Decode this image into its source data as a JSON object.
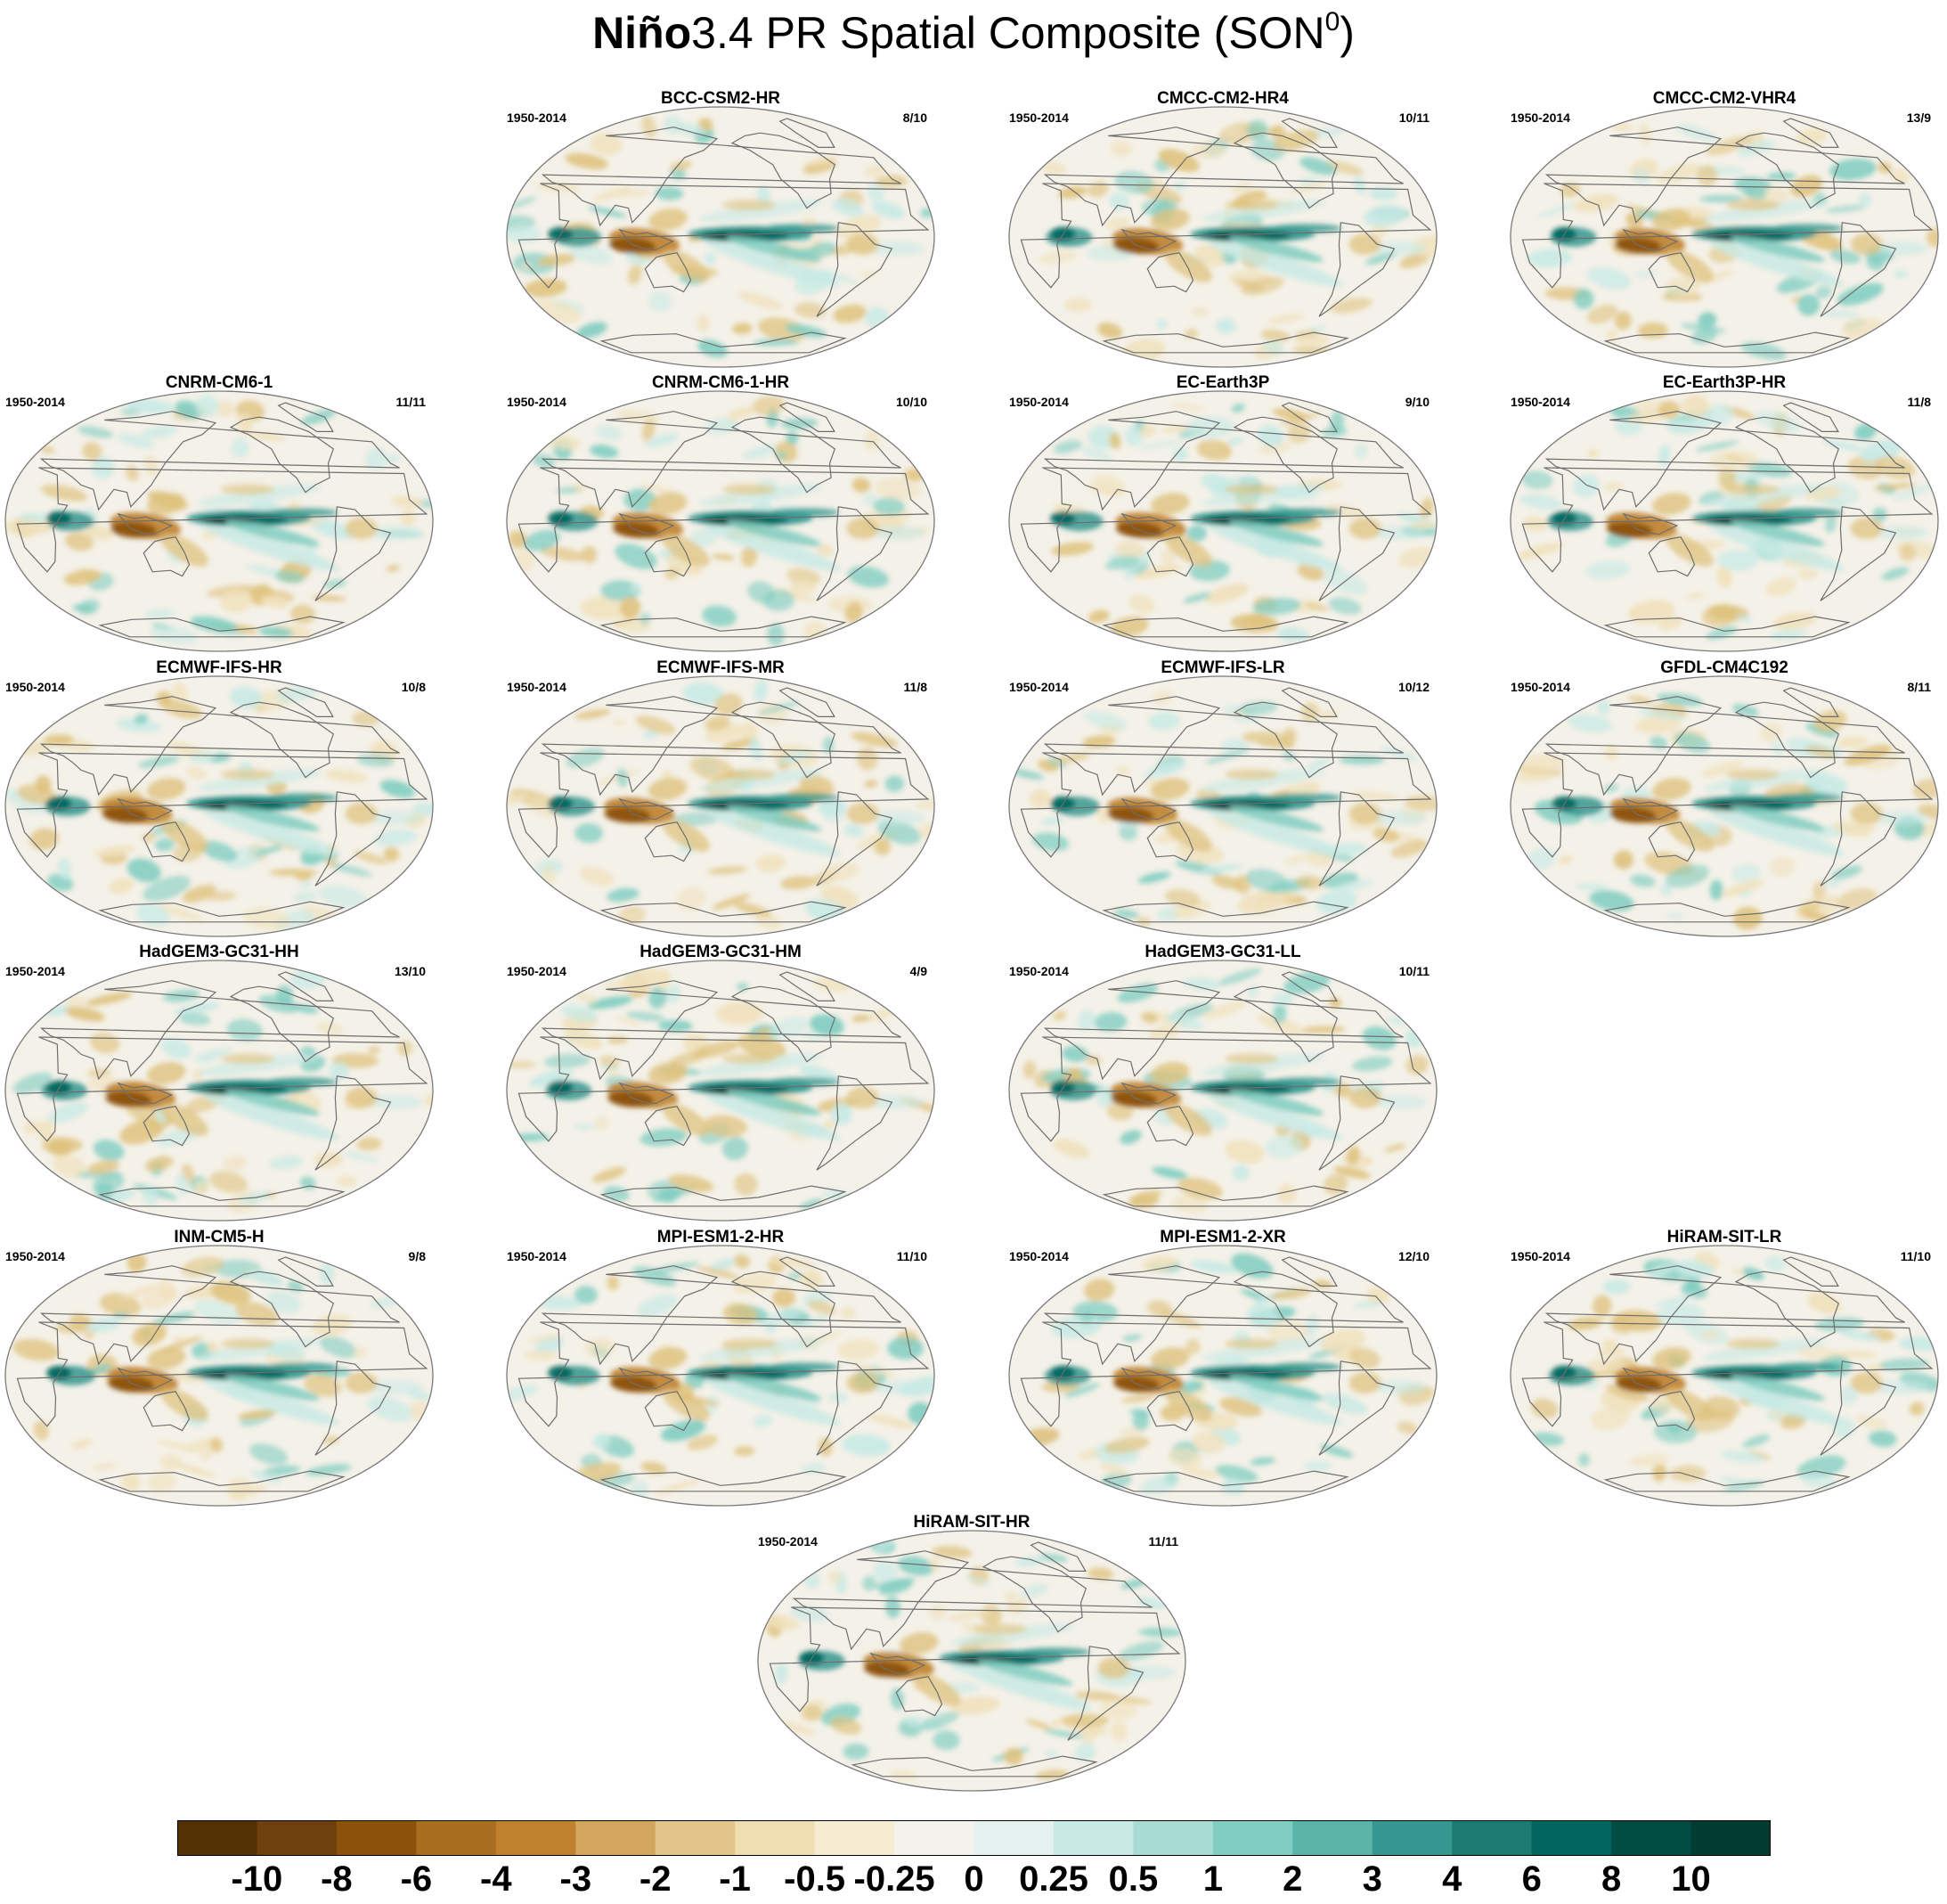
{
  "title": {
    "strong": "Niño",
    "rest": "3.4 PR Spatial Composite (SON",
    "sup": "0",
    "close": ")"
  },
  "panels": [
    {
      "name": "BCC-CSM2-HR",
      "period": "1950-2014",
      "count": "8/10"
    },
    {
      "name": "CMCC-CM2-HR4",
      "period": "1950-2014",
      "count": "10/11"
    },
    {
      "name": "CMCC-CM2-VHR4",
      "period": "1950-2014",
      "count": "13/9"
    },
    {
      "name": "CNRM-CM6-1",
      "period": "1950-2014",
      "count": "11/11"
    },
    {
      "name": "CNRM-CM6-1-HR",
      "period": "1950-2014",
      "count": "10/10"
    },
    {
      "name": "EC-Earth3P",
      "period": "1950-2014",
      "count": "9/10"
    },
    {
      "name": "EC-Earth3P-HR",
      "period": "1950-2014",
      "count": "11/8"
    },
    {
      "name": "ECMWF-IFS-HR",
      "period": "1950-2014",
      "count": "10/8"
    },
    {
      "name": "ECMWF-IFS-MR",
      "period": "1950-2014",
      "count": "11/8"
    },
    {
      "name": "ECMWF-IFS-LR",
      "period": "1950-2014",
      "count": "10/12"
    },
    {
      "name": "GFDL-CM4C192",
      "period": "1950-2014",
      "count": "8/11"
    },
    {
      "name": "HadGEM3-GC31-HH",
      "period": "1950-2014",
      "count": "13/10"
    },
    {
      "name": "HadGEM3-GC31-HM",
      "period": "1950-2014",
      "count": "4/9"
    },
    {
      "name": "HadGEM3-GC31-LL",
      "period": "1950-2014",
      "count": "10/11"
    },
    {
      "name": "INM-CM5-H",
      "period": "1950-2014",
      "count": "9/8"
    },
    {
      "name": "MPI-ESM1-2-HR",
      "period": "1950-2014",
      "count": "11/10"
    },
    {
      "name": "MPI-ESM1-2-XR",
      "period": "1950-2014",
      "count": "12/10"
    },
    {
      "name": "HiRAM-SIT-LR",
      "period": "1950-2014",
      "count": "11/10"
    },
    {
      "name": "HiRAM-SIT-HR",
      "period": "1950-2014",
      "count": "11/11"
    }
  ],
  "colorbar": {
    "labels": [
      "-10",
      "-8",
      "-6",
      "-4",
      "-3",
      "-2",
      "-1",
      "-0.5",
      "-0.25",
      "0",
      "0.25",
      "0.5",
      "1",
      "2",
      "3",
      "4",
      "6",
      "8",
      "10"
    ],
    "colors": [
      "#543005",
      "#6e400d",
      "#8c510a",
      "#a96d20",
      "#bf812d",
      "#d2a65d",
      "#e2c689",
      "#efdeb1",
      "#f6ecd2",
      "#f3f2ec",
      "#e4f1ef",
      "#c7eae5",
      "#a8dcd2",
      "#80cdc1",
      "#5ab4a8",
      "#35978f",
      "#1b7a71",
      "#01665e",
      "#014c43",
      "#003c30"
    ]
  }
}
